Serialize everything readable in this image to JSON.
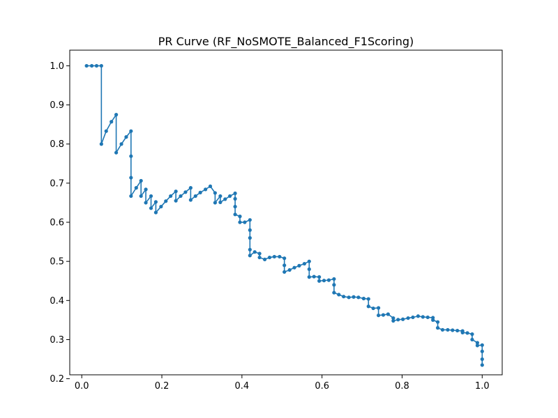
{
  "chart_data": {
    "type": "line",
    "title": "PR Curve (RF_NoSMOTE_Balanced_F1Scoring)",
    "xlabel": "",
    "ylabel": "",
    "xlim": [
      -0.03,
      1.05
    ],
    "ylim": [
      0.21,
      1.04
    ],
    "xticks": [
      0.0,
      0.2,
      0.4,
      0.6,
      0.8,
      1.0
    ],
    "yticks": [
      0.2,
      0.3,
      0.4,
      0.5,
      0.6,
      0.7,
      0.8,
      0.9,
      1.0
    ],
    "xtick_labels": [
      "0.0",
      "0.2",
      "0.4",
      "0.6",
      "0.8",
      "1.0"
    ],
    "ytick_labels": [
      "0.2",
      "0.3",
      "0.4",
      "0.5",
      "0.6",
      "0.7",
      "0.8",
      "0.9",
      "1.0"
    ],
    "grid": false,
    "legend": "none",
    "line_color": "#1f77b4",
    "marker": "circle",
    "series": [
      {
        "x": [
          0.012,
          0.025,
          0.037,
          0.049,
          0.049,
          0.061,
          0.074,
          0.086,
          0.086,
          0.099,
          0.111,
          0.123,
          0.123,
          0.123,
          0.123,
          0.136,
          0.148,
          0.148,
          0.16,
          0.16,
          0.173,
          0.173,
          0.185,
          0.185,
          0.198,
          0.21,
          0.222,
          0.235,
          0.235,
          0.247,
          0.259,
          0.272,
          0.272,
          0.284,
          0.296,
          0.309,
          0.321,
          0.333,
          0.333,
          0.346,
          0.346,
          0.358,
          0.37,
          0.383,
          0.383,
          0.383,
          0.383,
          0.395,
          0.395,
          0.407,
          0.42,
          0.42,
          0.42,
          0.42,
          0.42,
          0.432,
          0.444,
          0.444,
          0.457,
          0.469,
          0.481,
          0.494,
          0.506,
          0.506,
          0.506,
          0.519,
          0.531,
          0.543,
          0.556,
          0.568,
          0.568,
          0.568,
          0.58,
          0.593,
          0.593,
          0.605,
          0.617,
          0.63,
          0.63,
          0.63,
          0.642,
          0.654,
          0.667,
          0.679,
          0.691,
          0.704,
          0.716,
          0.716,
          0.728,
          0.741,
          0.741,
          0.753,
          0.765,
          0.778,
          0.778,
          0.79,
          0.802,
          0.815,
          0.827,
          0.84,
          0.852,
          0.864,
          0.877,
          0.877,
          0.889,
          0.889,
          0.901,
          0.914,
          0.926,
          0.938,
          0.951,
          0.951,
          0.963,
          0.975,
          0.975,
          0.988,
          0.988,
          1.0,
          1.0,
          1.0,
          1.0
        ],
        "y": [
          1.0,
          1.0,
          1.0,
          1.0,
          0.8,
          0.833,
          0.857,
          0.875,
          0.778,
          0.8,
          0.818,
          0.833,
          0.769,
          0.714,
          0.667,
          0.688,
          0.706,
          0.667,
          0.684,
          0.65,
          0.667,
          0.636,
          0.652,
          0.625,
          0.64,
          0.654,
          0.667,
          0.679,
          0.655,
          0.667,
          0.677,
          0.688,
          0.657,
          0.667,
          0.676,
          0.684,
          0.692,
          0.675,
          0.65,
          0.667,
          0.651,
          0.659,
          0.667,
          0.674,
          0.66,
          0.64,
          0.62,
          0.615,
          0.6,
          0.6,
          0.606,
          0.58,
          0.56,
          0.53,
          0.515,
          0.524,
          0.52,
          0.51,
          0.505,
          0.51,
          0.512,
          0.512,
          0.508,
          0.49,
          0.473,
          0.478,
          0.484,
          0.489,
          0.494,
          0.5,
          0.48,
          0.46,
          0.461,
          0.46,
          0.45,
          0.451,
          0.452,
          0.455,
          0.44,
          0.42,
          0.415,
          0.41,
          0.408,
          0.409,
          0.408,
          0.405,
          0.404,
          0.385,
          0.38,
          0.381,
          0.362,
          0.363,
          0.365,
          0.355,
          0.348,
          0.351,
          0.352,
          0.355,
          0.357,
          0.36,
          0.358,
          0.357,
          0.356,
          0.35,
          0.345,
          0.33,
          0.325,
          0.325,
          0.324,
          0.323,
          0.322,
          0.318,
          0.317,
          0.314,
          0.3,
          0.292,
          0.285,
          0.286,
          0.27,
          0.25,
          0.235
        ]
      }
    ]
  }
}
